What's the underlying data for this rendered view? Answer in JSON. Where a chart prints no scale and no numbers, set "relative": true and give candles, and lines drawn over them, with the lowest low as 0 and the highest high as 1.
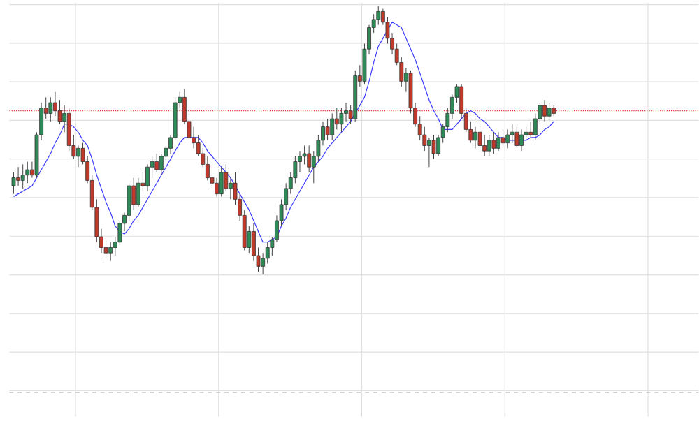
{
  "chart_data": {
    "type": "candlestick",
    "relative": true,
    "grid": true,
    "categories": [
      null,
      null,
      null,
      null,
      null,
      null,
      null,
      null,
      null,
      null,
      null,
      null,
      null,
      null,
      null,
      null,
      null,
      null,
      null,
      null,
      null,
      null,
      null,
      null,
      null,
      null,
      null,
      null,
      null,
      null,
      null,
      null,
      null,
      null,
      null,
      null,
      null,
      null,
      null,
      null,
      null,
      null,
      null,
      null,
      null,
      null,
      null,
      null,
      null,
      null,
      null,
      null,
      null,
      null,
      null,
      null,
      null,
      null,
      null,
      null,
      null,
      null,
      null,
      null,
      null,
      null,
      null,
      null,
      null,
      null,
      null,
      null,
      null,
      null,
      null,
      null,
      null,
      null,
      null,
      null,
      null,
      null,
      null,
      null,
      null,
      null,
      null,
      null,
      null,
      null,
      null,
      null,
      null,
      null,
      null,
      null,
      null,
      null,
      null,
      null,
      null,
      null,
      null,
      null,
      null,
      null,
      null,
      null,
      null,
      null,
      null,
      null,
      null,
      null,
      null,
      null,
      null,
      null
    ],
    "ohlc": [
      [
        0.33,
        0.38,
        0.3,
        0.36
      ],
      [
        0.36,
        0.4,
        0.33,
        0.35
      ],
      [
        0.35,
        0.41,
        0.32,
        0.37
      ],
      [
        0.37,
        0.42,
        0.34,
        0.39
      ],
      [
        0.39,
        0.42,
        0.36,
        0.37
      ],
      [
        0.37,
        0.53,
        0.36,
        0.52
      ],
      [
        0.52,
        0.64,
        0.5,
        0.62
      ],
      [
        0.62,
        0.66,
        0.58,
        0.6
      ],
      [
        0.6,
        0.66,
        0.57,
        0.64
      ],
      [
        0.64,
        0.68,
        0.59,
        0.61
      ],
      [
        0.61,
        0.65,
        0.56,
        0.57
      ],
      [
        0.57,
        0.63,
        0.53,
        0.6
      ],
      [
        0.6,
        0.62,
        0.46,
        0.48
      ],
      [
        0.48,
        0.52,
        0.43,
        0.44
      ],
      [
        0.44,
        0.48,
        0.4,
        0.47
      ],
      [
        0.47,
        0.49,
        0.41,
        0.42
      ],
      [
        0.42,
        0.44,
        0.34,
        0.35
      ],
      [
        0.35,
        0.37,
        0.24,
        0.25
      ],
      [
        0.25,
        0.28,
        0.12,
        0.14
      ],
      [
        0.14,
        0.17,
        0.08,
        0.1
      ],
      [
        0.1,
        0.13,
        0.06,
        0.08
      ],
      [
        0.08,
        0.12,
        0.05,
        0.1
      ],
      [
        0.1,
        0.14,
        0.07,
        0.12
      ],
      [
        0.12,
        0.2,
        0.11,
        0.19
      ],
      [
        0.19,
        0.23,
        0.16,
        0.22
      ],
      [
        0.22,
        0.34,
        0.2,
        0.33
      ],
      [
        0.33,
        0.36,
        0.24,
        0.26
      ],
      [
        0.26,
        0.36,
        0.25,
        0.34
      ],
      [
        0.34,
        0.38,
        0.31,
        0.33
      ],
      [
        0.33,
        0.41,
        0.31,
        0.4
      ],
      [
        0.4,
        0.44,
        0.36,
        0.42
      ],
      [
        0.42,
        0.45,
        0.38,
        0.39
      ],
      [
        0.39,
        0.45,
        0.37,
        0.44
      ],
      [
        0.44,
        0.48,
        0.42,
        0.47
      ],
      [
        0.47,
        0.52,
        0.45,
        0.51
      ],
      [
        0.51,
        0.66,
        0.5,
        0.64
      ],
      [
        0.64,
        0.68,
        0.62,
        0.66
      ],
      [
        0.66,
        0.69,
        0.56,
        0.57
      ],
      [
        0.57,
        0.6,
        0.5,
        0.51
      ],
      [
        0.51,
        0.55,
        0.47,
        0.49
      ],
      [
        0.49,
        0.52,
        0.44,
        0.45
      ],
      [
        0.45,
        0.47,
        0.4,
        0.41
      ],
      [
        0.41,
        0.44,
        0.35,
        0.36
      ],
      [
        0.36,
        0.4,
        0.33,
        0.34
      ],
      [
        0.34,
        0.36,
        0.29,
        0.3
      ],
      [
        0.3,
        0.4,
        0.29,
        0.38
      ],
      [
        0.38,
        0.41,
        0.31,
        0.32
      ],
      [
        0.32,
        0.36,
        0.28,
        0.34
      ],
      [
        0.34,
        0.38,
        0.26,
        0.28
      ],
      [
        0.28,
        0.3,
        0.2,
        0.22
      ],
      [
        0.22,
        0.24,
        0.09,
        0.1
      ],
      [
        0.1,
        0.18,
        0.08,
        0.16
      ],
      [
        0.16,
        0.19,
        0.05,
        0.07
      ],
      [
        0.07,
        0.1,
        0.01,
        0.03
      ],
      [
        0.03,
        0.08,
        0.0,
        0.06
      ],
      [
        0.06,
        0.12,
        0.04,
        0.1
      ],
      [
        0.1,
        0.14,
        0.07,
        0.13
      ],
      [
        0.13,
        0.22,
        0.12,
        0.2
      ],
      [
        0.2,
        0.28,
        0.18,
        0.26
      ],
      [
        0.26,
        0.34,
        0.24,
        0.32
      ],
      [
        0.32,
        0.38,
        0.3,
        0.36
      ],
      [
        0.36,
        0.44,
        0.34,
        0.42
      ],
      [
        0.42,
        0.46,
        0.38,
        0.44
      ],
      [
        0.44,
        0.48,
        0.41,
        0.45
      ],
      [
        0.45,
        0.48,
        0.38,
        0.4
      ],
      [
        0.4,
        0.46,
        0.34,
        0.44
      ],
      [
        0.44,
        0.52,
        0.42,
        0.5
      ],
      [
        0.5,
        0.57,
        0.48,
        0.55
      ],
      [
        0.55,
        0.58,
        0.5,
        0.52
      ],
      [
        0.52,
        0.6,
        0.5,
        0.58
      ],
      [
        0.58,
        0.62,
        0.54,
        0.56
      ],
      [
        0.56,
        0.62,
        0.53,
        0.6
      ],
      [
        0.6,
        0.64,
        0.57,
        0.61
      ],
      [
        0.61,
        0.63,
        0.56,
        0.58
      ],
      [
        0.58,
        0.76,
        0.57,
        0.74
      ],
      [
        0.74,
        0.78,
        0.7,
        0.72
      ],
      [
        0.72,
        0.86,
        0.71,
        0.84
      ],
      [
        0.84,
        0.93,
        0.82,
        0.92
      ],
      [
        0.92,
        0.97,
        0.9,
        0.95
      ],
      [
        0.95,
        1.0,
        0.93,
        0.98
      ],
      [
        0.98,
        0.99,
        0.93,
        0.94
      ],
      [
        0.94,
        0.96,
        0.86,
        0.88
      ],
      [
        0.88,
        0.9,
        0.82,
        0.84
      ],
      [
        0.84,
        0.86,
        0.78,
        0.79
      ],
      [
        0.79,
        0.81,
        0.7,
        0.72
      ],
      [
        0.72,
        0.77,
        0.68,
        0.75
      ],
      [
        0.75,
        0.76,
        0.6,
        0.62
      ],
      [
        0.62,
        0.64,
        0.55,
        0.56
      ],
      [
        0.56,
        0.59,
        0.5,
        0.52
      ],
      [
        0.52,
        0.55,
        0.46,
        0.48
      ],
      [
        0.48,
        0.51,
        0.4,
        0.5
      ],
      [
        0.5,
        0.52,
        0.43,
        0.45
      ],
      [
        0.45,
        0.52,
        0.44,
        0.51
      ],
      [
        0.51,
        0.56,
        0.49,
        0.55
      ],
      [
        0.55,
        0.62,
        0.53,
        0.6
      ],
      [
        0.6,
        0.67,
        0.58,
        0.66
      ],
      [
        0.66,
        0.71,
        0.64,
        0.7
      ],
      [
        0.7,
        0.71,
        0.58,
        0.6
      ],
      [
        0.6,
        0.62,
        0.53,
        0.54
      ],
      [
        0.54,
        0.57,
        0.49,
        0.5
      ],
      [
        0.5,
        0.55,
        0.47,
        0.53
      ],
      [
        0.53,
        0.56,
        0.46,
        0.48
      ],
      [
        0.48,
        0.52,
        0.44,
        0.46
      ],
      [
        0.46,
        0.52,
        0.44,
        0.5
      ],
      [
        0.5,
        0.53,
        0.45,
        0.47
      ],
      [
        0.47,
        0.53,
        0.46,
        0.51
      ],
      [
        0.51,
        0.54,
        0.48,
        0.49
      ],
      [
        0.49,
        0.54,
        0.47,
        0.52
      ],
      [
        0.52,
        0.56,
        0.49,
        0.53
      ],
      [
        0.53,
        0.55,
        0.47,
        0.48
      ],
      [
        0.48,
        0.54,
        0.46,
        0.52
      ],
      [
        0.52,
        0.55,
        0.5,
        0.53
      ],
      [
        0.53,
        0.57,
        0.51,
        0.52
      ],
      [
        0.52,
        0.6,
        0.5,
        0.58
      ],
      [
        0.58,
        0.64,
        0.56,
        0.63
      ],
      [
        0.63,
        0.65,
        0.57,
        0.59
      ],
      [
        0.59,
        0.64,
        0.57,
        0.62
      ],
      [
        0.62,
        0.63,
        0.59,
        0.6
      ]
    ],
    "colors": [
      "#2e8b57",
      "#c0392b",
      "#2e8b57",
      "#2e8b57",
      "#c0392b",
      "#2e8b57",
      "#2e8b57",
      "#c0392b",
      "#2e8b57",
      "#c0392b",
      "#c0392b",
      "#2e8b57",
      "#c0392b",
      "#c0392b",
      "#2e8b57",
      "#c0392b",
      "#c0392b",
      "#c0392b",
      "#c0392b",
      "#c0392b",
      "#c0392b",
      "#2e8b57",
      "#2e8b57",
      "#2e8b57",
      "#2e8b57",
      "#2e8b57",
      "#c0392b",
      "#2e8b57",
      "#c0392b",
      "#2e8b57",
      "#2e8b57",
      "#c0392b",
      "#2e8b57",
      "#2e8b57",
      "#2e8b57",
      "#2e8b57",
      "#2e8b57",
      "#c0392b",
      "#c0392b",
      "#c0392b",
      "#c0392b",
      "#c0392b",
      "#c0392b",
      "#c0392b",
      "#c0392b",
      "#2e8b57",
      "#c0392b",
      "#2e8b57",
      "#c0392b",
      "#c0392b",
      "#c0392b",
      "#2e8b57",
      "#c0392b",
      "#c0392b",
      "#2e8b57",
      "#2e8b57",
      "#2e8b57",
      "#2e8b57",
      "#2e8b57",
      "#2e8b57",
      "#2e8b57",
      "#2e8b57",
      "#2e8b57",
      "#2e8b57",
      "#c0392b",
      "#2e8b57",
      "#2e8b57",
      "#2e8b57",
      "#c0392b",
      "#2e8b57",
      "#c0392b",
      "#2e8b57",
      "#2e8b57",
      "#c0392b",
      "#2e8b57",
      "#c0392b",
      "#2e8b57",
      "#2e8b57",
      "#2e8b57",
      "#2e8b57",
      "#c0392b",
      "#c0392b",
      "#c0392b",
      "#c0392b",
      "#c0392b",
      "#2e8b57",
      "#c0392b",
      "#c0392b",
      "#c0392b",
      "#c0392b",
      "#2e8b57",
      "#c0392b",
      "#2e8b57",
      "#2e8b57",
      "#2e8b57",
      "#2e8b57",
      "#2e8b57",
      "#c0392b",
      "#c0392b",
      "#c0392b",
      "#2e8b57",
      "#c0392b",
      "#c0392b",
      "#2e8b57",
      "#c0392b",
      "#2e8b57",
      "#c0392b",
      "#2e8b57",
      "#2e8b57",
      "#c0392b",
      "#2e8b57",
      "#2e8b57",
      "#c0392b",
      "#2e8b57",
      "#2e8b57",
      "#c0392b",
      "#2e8b57",
      "#c0392b"
    ],
    "series": [
      {
        "type": "line",
        "color": "#3b3bff",
        "values": [
          0.29,
          0.3,
          0.31,
          0.32,
          0.33,
          0.36,
          0.39,
          0.42,
          0.45,
          0.49,
          0.52,
          0.56,
          0.56,
          0.55,
          0.53,
          0.5,
          0.48,
          0.43,
          0.37,
          0.32,
          0.27,
          0.23,
          0.18,
          0.16,
          0.15,
          0.17,
          0.2,
          0.22,
          0.25,
          0.28,
          0.31,
          0.34,
          0.37,
          0.4,
          0.43,
          0.46,
          0.49,
          0.51,
          0.51,
          0.51,
          0.51,
          0.49,
          0.46,
          0.44,
          0.42,
          0.4,
          0.38,
          0.36,
          0.33,
          0.3,
          0.27,
          0.24,
          0.2,
          0.16,
          0.12,
          0.12,
          0.13,
          0.14,
          0.18,
          0.21,
          0.25,
          0.28,
          0.31,
          0.34,
          0.37,
          0.4,
          0.42,
          0.44,
          0.47,
          0.49,
          0.51,
          0.53,
          0.55,
          0.57,
          0.6,
          0.63,
          0.66,
          0.72,
          0.79,
          0.85,
          0.88,
          0.91,
          0.94,
          0.93,
          0.92,
          0.88,
          0.84,
          0.8,
          0.75,
          0.7,
          0.65,
          0.61,
          0.58,
          0.54,
          0.54,
          0.54,
          0.56,
          0.58,
          0.6,
          0.61,
          0.6,
          0.58,
          0.57,
          0.55,
          0.53,
          0.51,
          0.51,
          0.5,
          0.5,
          0.5,
          0.5,
          0.5,
          0.51,
          0.51,
          0.52,
          0.54,
          0.55,
          0.57
        ]
      }
    ],
    "ref_lines": [
      {
        "axis": "y",
        "value": 0.61,
        "color": "#e03020",
        "line_style": "dotted"
      },
      {
        "axis": "y",
        "value": -0.44,
        "color": "#aaaaaa",
        "line_style": "dashed"
      }
    ]
  }
}
